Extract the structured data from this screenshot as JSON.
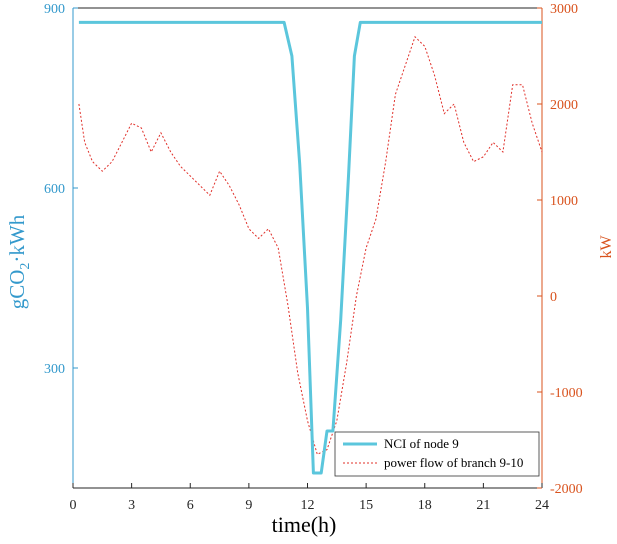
{
  "chart_data": {
    "type": "line",
    "xlabel": "time(h)",
    "ylabel_left_main": "gCO",
    "ylabel_left_sub": "2",
    "ylabel_left_rest": "·kWh",
    "ylabel_right": "kW",
    "xlim": [
      0,
      24
    ],
    "ylim_left": [
      100,
      900
    ],
    "ylim_right": [
      -2000,
      3000
    ],
    "x_ticks": [
      0,
      3,
      6,
      9,
      12,
      15,
      18,
      21,
      24
    ],
    "y_left_ticks": [
      300,
      600,
      900
    ],
    "y_right_ticks": [
      -2000,
      -1000,
      0,
      1000,
      2000,
      3000
    ],
    "grid": false,
    "legend_position": "bottom-right",
    "colors": {
      "left_axis": "#3399cc",
      "right_axis": "#d9531e",
      "nci_line": "#5bc6dc",
      "power_line": "#e0302a"
    },
    "series": [
      {
        "name": "NCI of node 9",
        "axis": "left",
        "style": "solid",
        "x": [
          0.3,
          10.8,
          11.2,
          11.6,
          12.0,
          12.3,
          12.7,
          13.0,
          13.3,
          13.7,
          14.1,
          14.4,
          14.7,
          15.0,
          24.0
        ],
        "y": [
          876,
          876,
          820,
          640,
          400,
          125,
          125,
          195,
          195,
          380,
          620,
          820,
          876,
          876,
          876
        ]
      },
      {
        "name": "power flow of branch 9-10",
        "axis": "right",
        "style": "dotted",
        "x": [
          0.3,
          0.6,
          1.0,
          1.5,
          2.0,
          2.5,
          3.0,
          3.5,
          4.0,
          4.5,
          5.0,
          5.5,
          6.0,
          6.5,
          7.0,
          7.5,
          8.0,
          8.5,
          9.0,
          9.5,
          10.0,
          10.5,
          11.0,
          11.5,
          12.0,
          12.5,
          13.0,
          13.5,
          14.0,
          14.5,
          15.0,
          15.5,
          16.0,
          16.5,
          17.0,
          17.5,
          18.0,
          18.5,
          19.0,
          19.5,
          20.0,
          20.5,
          21.0,
          21.5,
          22.0,
          22.5,
          23.0,
          23.5,
          24.0
        ],
        "y": [
          2000,
          1600,
          1400,
          1300,
          1400,
          1600,
          1800,
          1750,
          1500,
          1700,
          1500,
          1350,
          1250,
          1150,
          1050,
          1300,
          1150,
          950,
          700,
          600,
          700,
          500,
          -100,
          -800,
          -1300,
          -1650,
          -1600,
          -1300,
          -700,
          0,
          500,
          800,
          1400,
          2100,
          2400,
          2700,
          2600,
          2300,
          1900,
          2000,
          1600,
          1400,
          1450,
          1600,
          1500,
          2200,
          2200,
          1800,
          1500
        ]
      }
    ]
  }
}
